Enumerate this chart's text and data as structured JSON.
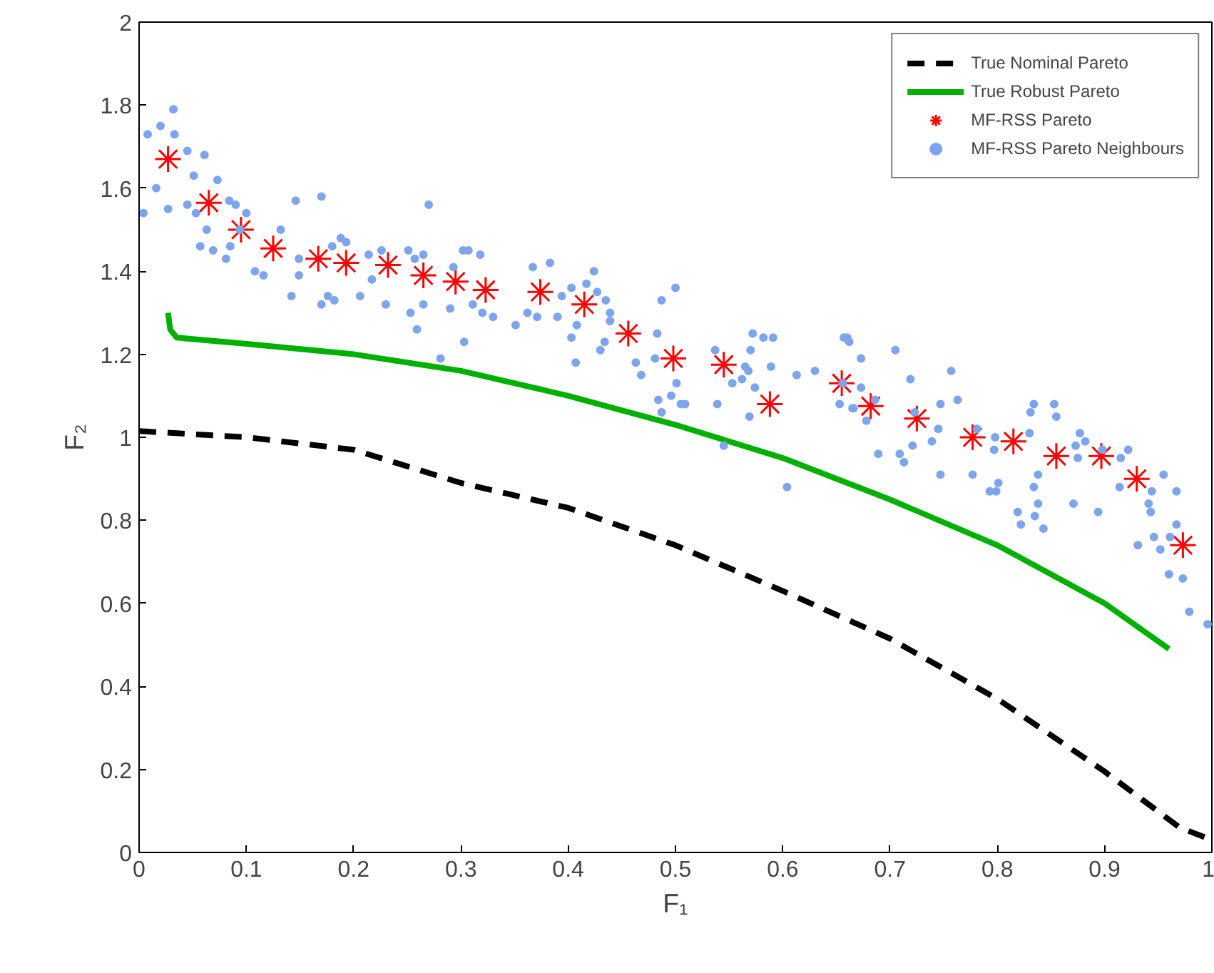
{
  "chart_data": {
    "type": "line",
    "xlabel": "F₁",
    "ylabel": "F₂",
    "xlim": [
      0,
      1
    ],
    "ylim": [
      0,
      2
    ],
    "xticks": [
      0,
      0.1,
      0.2,
      0.3,
      0.4,
      0.5,
      0.6,
      0.7,
      0.8,
      0.9,
      1
    ],
    "yticks": [
      0,
      0.2,
      0.4,
      0.6,
      0.8,
      1,
      1.2,
      1.4,
      1.6,
      1.8,
      2
    ],
    "grid": false,
    "legend": "top right",
    "series": [
      {
        "name": "True Nominal Pareto",
        "color": "#000000",
        "line_style": "dashed",
        "x": [
          0,
          0.1,
          0.2,
          0.3,
          0.4,
          0.5,
          0.6,
          0.7,
          0.8,
          0.9,
          0.97,
          1.0
        ],
        "values": [
          1.015,
          1.0,
          0.97,
          0.89,
          0.83,
          0.74,
          0.63,
          0.515,
          0.37,
          0.195,
          0.06,
          0.03
        ]
      },
      {
        "name": "True Robust Pareto",
        "color": "#00b000",
        "line_style": "solid",
        "x": [
          0.027,
          0.029,
          0.035,
          0.1,
          0.2,
          0.3,
          0.4,
          0.5,
          0.6,
          0.7,
          0.8,
          0.9,
          0.96
        ],
        "values": [
          1.3,
          1.26,
          1.24,
          1.225,
          1.2,
          1.16,
          1.1,
          1.03,
          0.95,
          0.85,
          0.74,
          0.6,
          0.49
        ]
      },
      {
        "name": "MF-RSS Pareto",
        "type": "scatter",
        "marker": "cross",
        "color": "#ff0000",
        "x": [
          0.027,
          0.065,
          0.095,
          0.125,
          0.167,
          0.193,
          0.232,
          0.265,
          0.295,
          0.323,
          0.374,
          0.415,
          0.456,
          0.498,
          0.545,
          0.588,
          0.655,
          0.682,
          0.725,
          0.777,
          0.815,
          0.855,
          0.897,
          0.93,
          0.973
        ],
        "values": [
          1.67,
          1.565,
          1.5,
          1.455,
          1.43,
          1.42,
          1.415,
          1.39,
          1.375,
          1.355,
          1.35,
          1.32,
          1.25,
          1.19,
          1.175,
          1.08,
          1.13,
          1.075,
          1.045,
          1.0,
          0.99,
          0.955,
          0.955,
          0.9,
          0.74
        ]
      },
      {
        "name": "MF-RSS Pareto Neighbours",
        "type": "scatter",
        "marker": "circle",
        "color": "#7ca5ee",
        "x": [
          0.032,
          0.008,
          0.02,
          0.033,
          0.045,
          0.061,
          0.051,
          0.016,
          0.004,
          0.027,
          0.073,
          0.045,
          0.053,
          0.084,
          0.09,
          0.1,
          0.063,
          0.057,
          0.069,
          0.081,
          0.094,
          0.085,
          0.132,
          0.108,
          0.116,
          0.146,
          0.17,
          0.149,
          0.149,
          0.142,
          0.17,
          0.176,
          0.182,
          0.18,
          0.188,
          0.193,
          0.206,
          0.217,
          0.214,
          0.226,
          0.23,
          0.251,
          0.257,
          0.265,
          0.27,
          0.265,
          0.253,
          0.259,
          0.281,
          0.303,
          0.302,
          0.307,
          0.318,
          0.29,
          0.293,
          0.311,
          0.32,
          0.33,
          0.367,
          0.383,
          0.424,
          0.403,
          0.417,
          0.394,
          0.427,
          0.435,
          0.362,
          0.351,
          0.371,
          0.39,
          0.408,
          0.439,
          0.439,
          0.403,
          0.434,
          0.43,
          0.407,
          0.487,
          0.5,
          0.483,
          0.481,
          0.463,
          0.468,
          0.501,
          0.484,
          0.496,
          0.487,
          0.505,
          0.509,
          0.537,
          0.572,
          0.582,
          0.591,
          0.57,
          0.565,
          0.568,
          0.562,
          0.553,
          0.574,
          0.589,
          0.613,
          0.63,
          0.539,
          0.569,
          0.545,
          0.604,
          0.657,
          0.66,
          0.653,
          0.665,
          0.656,
          0.662,
          0.673,
          0.705,
          0.673,
          0.666,
          0.686,
          0.678,
          0.689,
          0.719,
          0.723,
          0.709,
          0.713,
          0.721,
          0.745,
          0.739,
          0.747,
          0.763,
          0.757,
          0.747,
          0.777,
          0.781,
          0.798,
          0.797,
          0.793,
          0.799,
          0.801,
          0.819,
          0.822,
          0.835,
          0.843,
          0.838,
          0.834,
          0.838,
          0.83,
          0.831,
          0.834,
          0.853,
          0.855,
          0.871,
          0.894,
          0.877,
          0.873,
          0.882,
          0.875,
          0.898,
          0.915,
          0.922,
          0.914,
          0.944,
          0.955,
          0.967,
          0.941,
          0.943,
          0.946,
          0.931,
          0.952,
          0.961,
          0.967,
          0.96,
          0.973,
          0.979,
          0.996
        ],
        "values": [
          1.79,
          1.73,
          1.75,
          1.73,
          1.69,
          1.68,
          1.63,
          1.6,
          1.54,
          1.55,
          1.62,
          1.56,
          1.54,
          1.57,
          1.56,
          1.54,
          1.5,
          1.46,
          1.45,
          1.43,
          1.5,
          1.46,
          1.5,
          1.4,
          1.39,
          1.57,
          1.58,
          1.43,
          1.39,
          1.34,
          1.32,
          1.34,
          1.33,
          1.46,
          1.48,
          1.47,
          1.34,
          1.38,
          1.44,
          1.45,
          1.32,
          1.45,
          1.43,
          1.44,
          1.56,
          1.32,
          1.3,
          1.26,
          1.19,
          1.23,
          1.45,
          1.45,
          1.44,
          1.31,
          1.41,
          1.32,
          1.3,
          1.29,
          1.41,
          1.42,
          1.4,
          1.36,
          1.37,
          1.34,
          1.35,
          1.33,
          1.3,
          1.27,
          1.29,
          1.29,
          1.27,
          1.3,
          1.28,
          1.24,
          1.23,
          1.21,
          1.18,
          1.33,
          1.36,
          1.25,
          1.19,
          1.18,
          1.15,
          1.13,
          1.09,
          1.1,
          1.06,
          1.08,
          1.08,
          1.21,
          1.25,
          1.24,
          1.24,
          1.21,
          1.17,
          1.16,
          1.14,
          1.13,
          1.12,
          1.17,
          1.15,
          1.16,
          1.08,
          1.05,
          0.98,
          0.88,
          1.24,
          1.24,
          1.08,
          1.07,
          1.13,
          1.23,
          1.19,
          1.21,
          1.12,
          1.07,
          1.09,
          1.04,
          0.96,
          1.14,
          1.06,
          0.96,
          0.94,
          0.98,
          1.02,
          0.99,
          1.08,
          1.09,
          1.16,
          0.91,
          0.91,
          1.02,
          1.0,
          0.97,
          0.87,
          0.87,
          0.89,
          0.82,
          0.79,
          0.81,
          0.78,
          0.84,
          0.88,
          0.91,
          1.01,
          1.06,
          1.08,
          1.08,
          1.05,
          0.84,
          0.82,
          1.01,
          0.98,
          0.99,
          0.95,
          0.97,
          0.95,
          0.97,
          0.88,
          0.87,
          0.91,
          0.87,
          0.84,
          0.82,
          0.76,
          0.74,
          0.73,
          0.76,
          0.79,
          0.67,
          0.66,
          0.58,
          0.55
        ]
      }
    ]
  }
}
